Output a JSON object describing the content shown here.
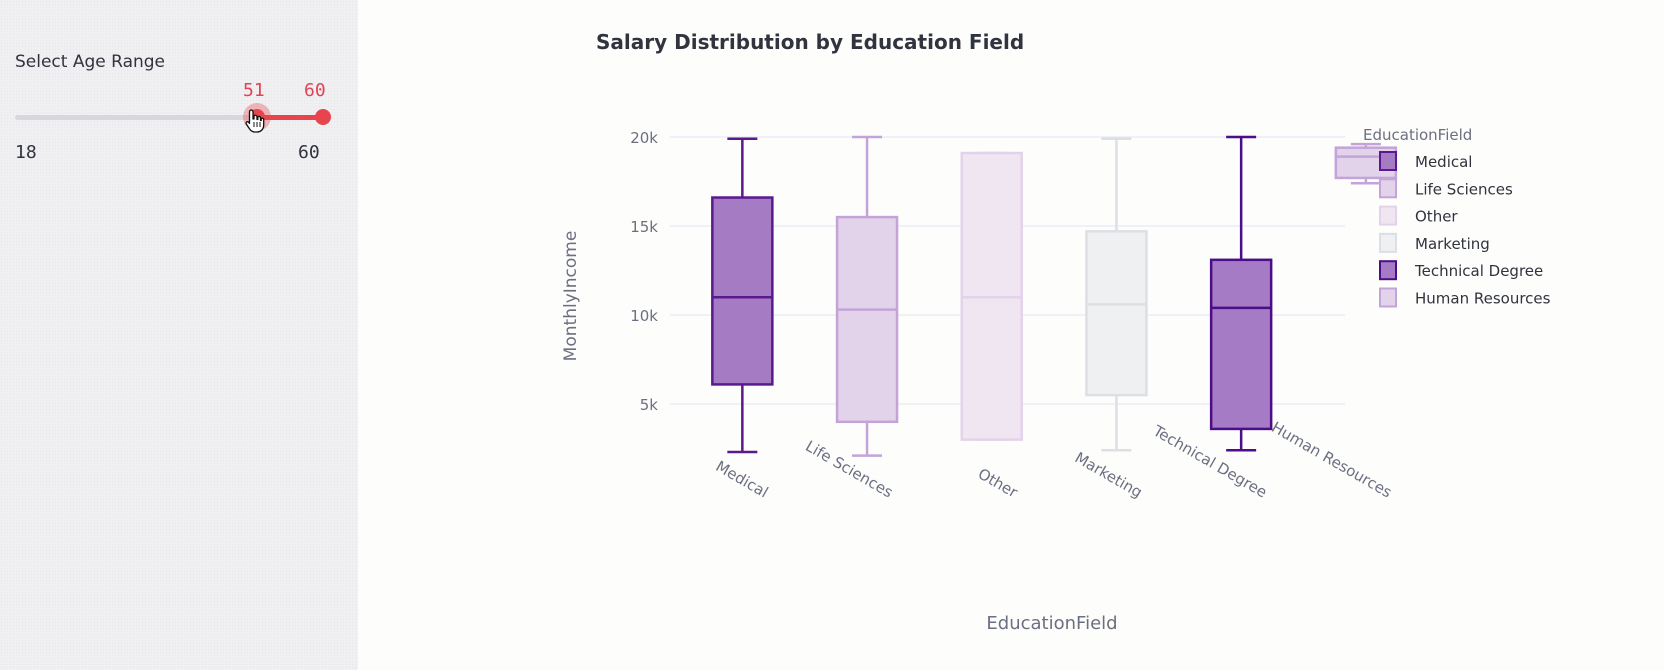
{
  "sidebar": {
    "slider": {
      "label": "Select Age Range",
      "min": 18,
      "max": 60,
      "value_low": 51,
      "value_high": 60,
      "min_label": "18",
      "max_label": "60",
      "low_label": "51",
      "high_label": "60",
      "accent_color": "#e8444e"
    }
  },
  "chart_data": {
    "type": "box",
    "title": "Salary Distribution by Education Field",
    "xlabel": "EducationField",
    "ylabel": "MonthlyIncome",
    "ylim": [
      1500,
      21500
    ],
    "yticks": [
      5000,
      10000,
      15000,
      20000
    ],
    "ytick_labels": [
      "5k",
      "10k",
      "15k",
      "20k"
    ],
    "grid": true,
    "legend_title": "EducationField",
    "legend_position": "right",
    "series": [
      {
        "name": "Medical",
        "min": 2300,
        "q1": 6100,
        "median": 11000,
        "q3": 16600,
        "max": 19900,
        "color": "#5a1a8f",
        "fill": "#a57bc4",
        "opacity": 1
      },
      {
        "name": "Life Sciences",
        "min": 2100,
        "q1": 4000,
        "median": 10300,
        "q3": 15500,
        "max": 20000,
        "color": "#c3a4d9",
        "fill": "#e2d3ea",
        "opacity": 1
      },
      {
        "name": "Other",
        "min": 3000,
        "q1": 3000,
        "median": 11000,
        "q3": 19100,
        "max": 19100,
        "color": "#e3d2ea",
        "fill": "#efe6f2",
        "opacity": 1
      },
      {
        "name": "Marketing",
        "min": 2400,
        "q1": 5500,
        "median": 10600,
        "q3": 14700,
        "max": 19900,
        "color": "#dcdfe4",
        "fill": "#eef0f2",
        "opacity": 1
      },
      {
        "name": "Technical Degree",
        "min": 2400,
        "q1": 3600,
        "median": 10400,
        "q3": 13100,
        "max": 20000,
        "color": "#4c0d88",
        "fill": "#a67bc5",
        "opacity": 1
      },
      {
        "name": "Human Resources",
        "min": 17400,
        "q1": 17700,
        "median": 18900,
        "q3": 19400,
        "max": 19600,
        "color": "#c3a4d9",
        "fill": "#e2d3ea",
        "opacity": 1
      }
    ]
  }
}
